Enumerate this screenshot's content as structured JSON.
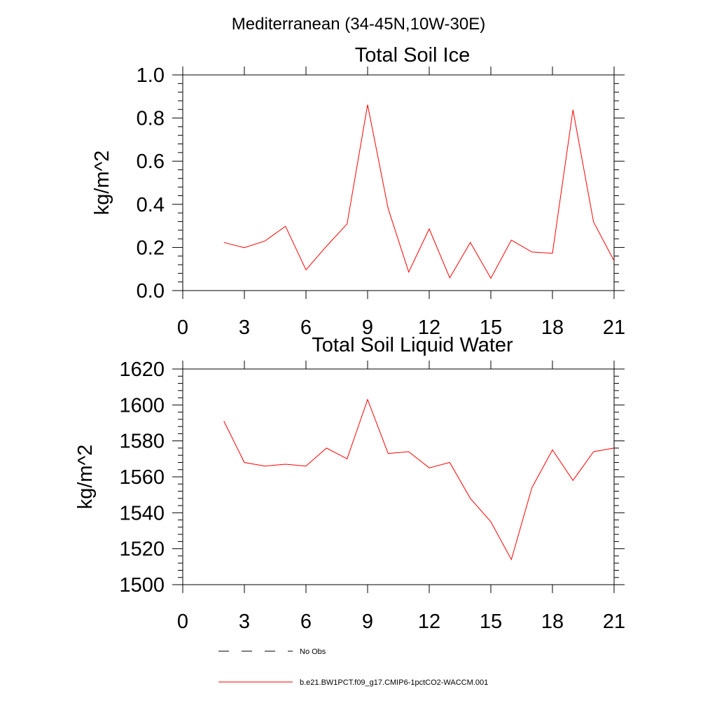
{
  "figure": {
    "suptitle": "Mediterranean (34-45N,10W-30E)"
  },
  "legend": {
    "items": [
      {
        "label": "No Obs",
        "color": "#000000",
        "dash": "dashed"
      },
      {
        "label": "b.e21.BW1PCT.f09_g17.CMIP6-1pctCO2-WACCM.001",
        "color": "#ff0000",
        "dash": "solid"
      }
    ]
  },
  "chart_data": [
    {
      "type": "line",
      "title": "Total Soil Ice",
      "xlabel": "",
      "ylabel": "kg/m^2",
      "xlim": [
        0,
        21
      ],
      "ylim": [
        0.0,
        1.0
      ],
      "xticks": [
        0,
        3,
        6,
        9,
        12,
        15,
        18,
        21
      ],
      "xtick_labels": [
        "0",
        "3",
        "6",
        "9",
        "12",
        "15",
        "18",
        "21"
      ],
      "yticks": [
        0.0,
        0.2,
        0.4,
        0.6,
        0.8,
        1.0
      ],
      "ytick_labels": [
        "0.0",
        "0.2",
        "0.4",
        "0.6",
        "0.8",
        "1.0"
      ],
      "grid": false,
      "series": [
        {
          "name": "b.e21.BW1PCT.f09_g17.CMIP6-1pctCO2-WACCM.001",
          "color": "#ff0000",
          "x": [
            2,
            3,
            4,
            5,
            6,
            7,
            8,
            9,
            10,
            11,
            12,
            13,
            14,
            15,
            16,
            17,
            18,
            19,
            20,
            21
          ],
          "values": [
            0.223,
            0.199,
            0.23,
            0.298,
            0.096,
            0.206,
            0.309,
            0.862,
            0.381,
            0.086,
            0.286,
            0.059,
            0.223,
            0.057,
            0.234,
            0.179,
            0.173,
            0.838,
            0.318,
            0.138
          ]
        }
      ]
    },
    {
      "type": "line",
      "title": "Total Soil Liquid Water",
      "xlabel": "",
      "ylabel": "kg/m^2",
      "xlim": [
        0,
        21
      ],
      "ylim": [
        1500,
        1620
      ],
      "xticks": [
        0,
        3,
        6,
        9,
        12,
        15,
        18,
        21
      ],
      "xtick_labels": [
        "0",
        "3",
        "6",
        "9",
        "12",
        "15",
        "18",
        "21"
      ],
      "yticks": [
        1500,
        1520,
        1540,
        1560,
        1580,
        1600,
        1620
      ],
      "ytick_labels": [
        "1500",
        "1520",
        "1540",
        "1560",
        "1580",
        "1600",
        "1620"
      ],
      "grid": false,
      "series": [
        {
          "name": "b.e21.BW1PCT.f09_g17.CMIP6-1pctCO2-WACCM.001",
          "color": "#ff0000",
          "x": [
            2,
            3,
            4,
            5,
            6,
            7,
            8,
            9,
            10,
            11,
            12,
            13,
            14,
            15,
            16,
            17,
            18,
            19,
            20,
            21
          ],
          "values": [
            1591,
            1568,
            1566,
            1567,
            1566,
            1576,
            1570,
            1603,
            1573,
            1574,
            1565,
            1568,
            1548,
            1535,
            1514,
            1554,
            1575,
            1558,
            1574,
            1576
          ]
        }
      ]
    }
  ]
}
